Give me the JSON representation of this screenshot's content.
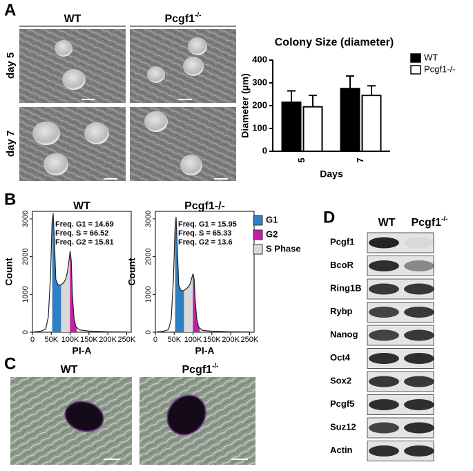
{
  "panels": {
    "a": "A",
    "b": "B",
    "c": "C",
    "d": "D"
  },
  "micrographs": {
    "columns": [
      {
        "base": "WT"
      },
      {
        "base": "Pcgf1",
        "sup": "-/-"
      }
    ],
    "rows": [
      "day 5",
      "day 7"
    ]
  },
  "panel_c": {
    "columns": [
      {
        "base": "WT"
      },
      {
        "base": "Pcgf1",
        "sup": "-/-"
      }
    ]
  },
  "flow_legend": [
    {
      "name": "G1",
      "color": "#2f7fc4"
    },
    {
      "name": "G2",
      "color": "#c21fa6"
    },
    {
      "name": "S Phase",
      "color": "#d9d9d9"
    }
  ],
  "western": {
    "columns": [
      {
        "base": "WT"
      },
      {
        "base": "Pcgf1",
        "sup": "-/-"
      }
    ],
    "rows": [
      "Pcgf1",
      "BcoR",
      "Ring1B",
      "Rybp",
      "Nanog",
      "Oct4",
      "Sox2",
      "Pcgf5",
      "Suz12",
      "Actin"
    ]
  },
  "chart_data": [
    {
      "type": "bar",
      "title": "Colony Size (diameter)",
      "x_label": "Days",
      "y_label": "Diameter (µm)",
      "categories": [
        "5",
        "7"
      ],
      "ylim": [
        0,
        400
      ],
      "yticks": [
        0,
        100,
        200,
        300,
        400
      ],
      "legend": "right",
      "series": [
        {
          "name": "WT",
          "color": "#000000",
          "values": [
            215,
            275
          ],
          "errors": [
            50,
            55
          ]
        },
        {
          "name": "Pcgf1-/-",
          "color": "#ffffff",
          "values": [
            195,
            245
          ],
          "errors": [
            50,
            42
          ]
        }
      ]
    },
    {
      "type": "line",
      "title": "WT",
      "x_label": "PI-A",
      "y_label": "Count",
      "annotations": [
        "Freq. G1 = 14.69",
        "Freq. S = 66.52",
        "Freq. G2 = 15.81"
      ],
      "xlim": [
        0,
        262144
      ],
      "ylim": [
        0,
        3200
      ],
      "xticks": [
        0,
        {
          "value": 50000,
          "label": "50K"
        },
        {
          "value": 100000,
          "label": "100K"
        },
        {
          "value": 150000,
          "label": "150K"
        },
        {
          "value": 200000,
          "label": "200K"
        },
        {
          "value": 250000,
          "label": "250K"
        }
      ],
      "yticks": [
        0,
        1000,
        2000,
        3000
      ],
      "x": [
        5000,
        20000,
        35000,
        42000,
        48000,
        52000,
        55000,
        58000,
        62000,
        68000,
        75000,
        82000,
        88000,
        93000,
        97000,
        100000,
        103000,
        106000,
        110000,
        115000,
        125000,
        150000,
        200000,
        250000
      ],
      "series": [
        {
          "color": "#222222",
          "values": [
            10,
            20,
            80,
            400,
            1500,
            2900,
            3150,
            2500,
            1400,
            1250,
            1250,
            1300,
            1400,
            1600,
            1900,
            2150,
            1900,
            1000,
            400,
            150,
            60,
            30,
            10,
            5
          ]
        }
      ]
    },
    {
      "type": "line",
      "title": "Pcgf1-/-",
      "x_label": "PI-A",
      "y_label": "Count",
      "annotations": [
        "Freq. G1 = 15.95",
        "Freq. S = 65.33",
        "Freq. G2 = 13.6"
      ],
      "xlim": [
        0,
        262144
      ],
      "ylim": [
        0,
        3200
      ],
      "xticks": [
        0,
        {
          "value": 50000,
          "label": "50K"
        },
        {
          "value": 100000,
          "label": "100K"
        },
        {
          "value": 150000,
          "label": "150K"
        },
        {
          "value": 200000,
          "label": "200K"
        },
        {
          "value": 250000,
          "label": "250K"
        }
      ],
      "yticks": [
        0,
        1000,
        2000,
        3000
      ],
      "x": [
        5000,
        20000,
        35000,
        42000,
        48000,
        52000,
        55000,
        58000,
        62000,
        68000,
        75000,
        82000,
        88000,
        93000,
        97000,
        100000,
        103000,
        106000,
        110000,
        115000,
        125000,
        150000,
        200000,
        250000
      ],
      "series": [
        {
          "color": "#222222",
          "values": [
            10,
            20,
            70,
            350,
            1400,
            2700,
            3050,
            2300,
            1250,
            1100,
            1100,
            1150,
            1200,
            1300,
            1450,
            1550,
            1400,
            800,
            350,
            130,
            50,
            25,
            10,
            5
          ]
        }
      ]
    }
  ]
}
